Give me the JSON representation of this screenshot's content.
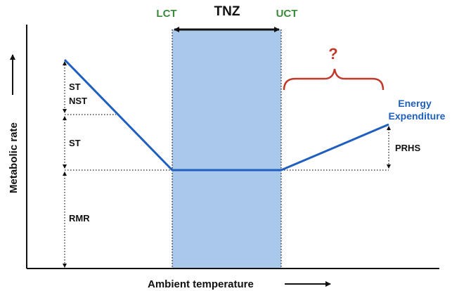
{
  "axes": {
    "y_label": "Metabolic rate",
    "x_label": "Ambient temperature"
  },
  "zone": {
    "lower": "LCT",
    "name": "TNZ",
    "upper": "UCT"
  },
  "unknown": "?",
  "curve_label": [
    "Energy",
    "Expenditure"
  ],
  "segments": [
    "ST",
    "NST",
    "ST",
    "RMR",
    "PRHS"
  ]
}
